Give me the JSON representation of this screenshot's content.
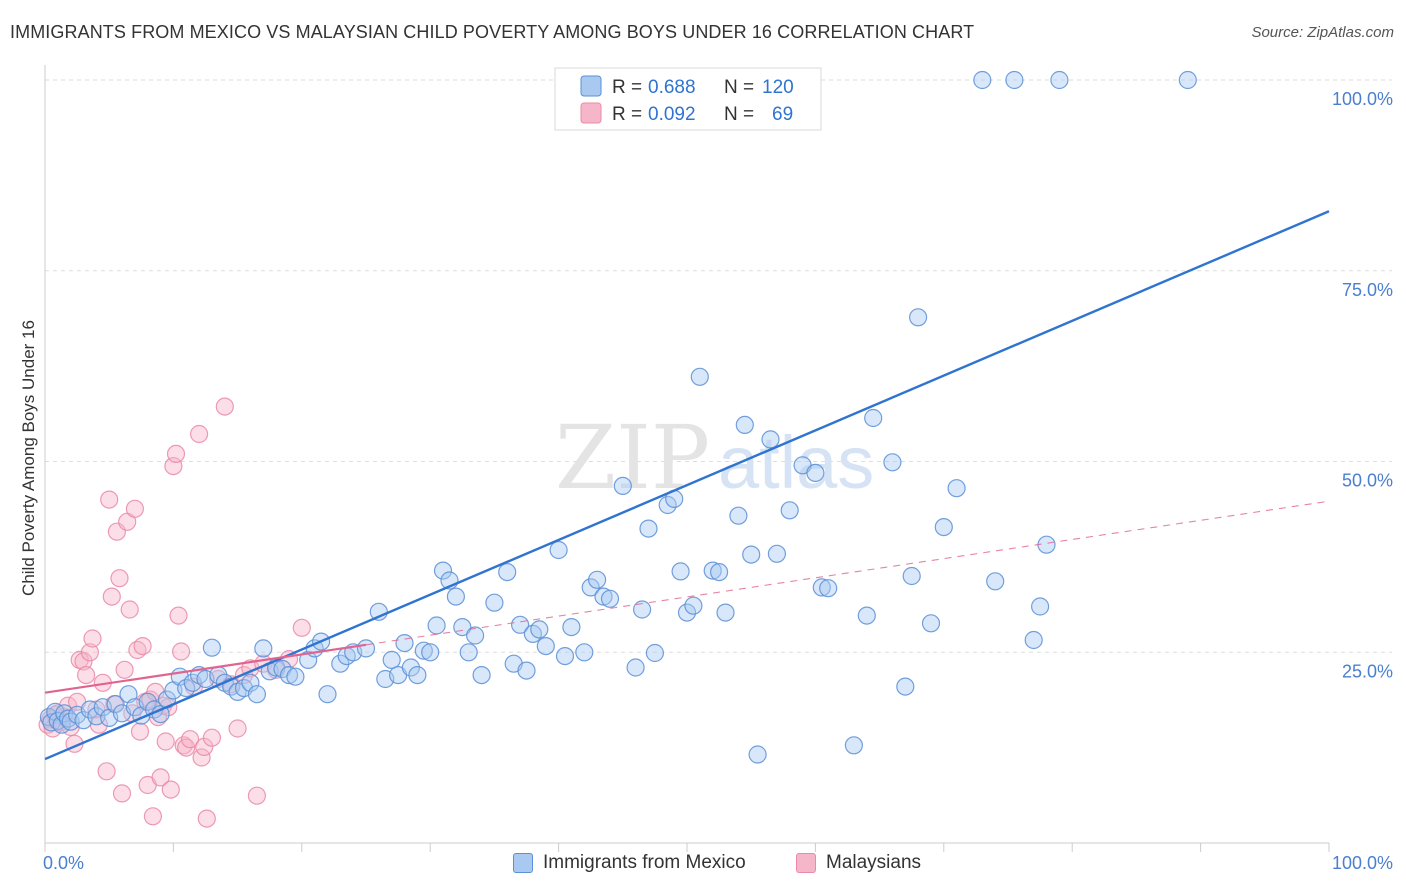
{
  "title": "IMMIGRANTS FROM MEXICO VS MALAYSIAN CHILD POVERTY AMONG BOYS UNDER 16 CORRELATION CHART",
  "source": "Source: ZipAtlas.com",
  "watermark": {
    "zip": "ZIP",
    "atlas": "atlas"
  },
  "colors": {
    "blue_fill": "#a9c9f1",
    "blue_stroke": "#5b8fd6",
    "blue_line": "#2f74d0",
    "pink_fill": "#f6b6c9",
    "pink_stroke": "#ea8aa7",
    "pink_line": "#e0648f",
    "grid": "#dddddd",
    "tick_label": "#4a7fcf"
  },
  "legend_top": [
    {
      "r_label": "R = ",
      "r_value": "0.688",
      "n_label": "N = ",
      "n_value": "120"
    },
    {
      "r_label": "R = ",
      "r_value": "0.092",
      "n_label": "N = ",
      "n_value": "69"
    }
  ],
  "chart_data": {
    "type": "scatter",
    "title": "IMMIGRANTS FROM MEXICO VS MALAYSIAN CHILD POVERTY AMONG BOYS UNDER 16 CORRELATION CHART",
    "xlabel": "",
    "ylabel": "Child Poverty Among Boys Under 16",
    "xlim": [
      0,
      100
    ],
    "ylim": [
      0,
      100
    ],
    "x_tick_labels": [
      "0.0%",
      "100.0%"
    ],
    "y_ticks": [
      25,
      50,
      75,
      100
    ],
    "y_tick_labels": [
      "25.0%",
      "50.0%",
      "75.0%",
      "100.0%"
    ],
    "grid": true,
    "legend_position": "bottom",
    "series": [
      {
        "name": "Immigrants from Mexico",
        "r": 0.688,
        "n": 120,
        "trend": {
          "x": [
            0,
            100
          ],
          "y": [
            11.0,
            82.8
          ]
        },
        "points": [
          [
            0.3,
            16.5
          ],
          [
            0.5,
            15.8
          ],
          [
            0.8,
            17.2
          ],
          [
            1.0,
            16.0
          ],
          [
            1.3,
            15.5
          ],
          [
            1.5,
            17.0
          ],
          [
            1.8,
            16.3
          ],
          [
            2.0,
            15.9
          ],
          [
            2.5,
            16.8
          ],
          [
            3.0,
            16.1
          ],
          [
            3.5,
            17.5
          ],
          [
            4.0,
            16.6
          ],
          [
            4.5,
            17.8
          ],
          [
            5.0,
            16.4
          ],
          [
            5.5,
            18.2
          ],
          [
            6.0,
            17.0
          ],
          [
            6.5,
            19.5
          ],
          [
            7.0,
            17.8
          ],
          [
            7.5,
            16.7
          ],
          [
            8.0,
            18.5
          ],
          [
            8.5,
            17.5
          ],
          [
            9.0,
            16.9
          ],
          [
            9.5,
            18.8
          ],
          [
            10.0,
            20.0
          ],
          [
            10.5,
            21.8
          ],
          [
            11.0,
            20.3
          ],
          [
            11.5,
            21.0
          ],
          [
            12.0,
            22.0
          ],
          [
            12.5,
            21.5
          ],
          [
            13.0,
            25.6
          ],
          [
            13.5,
            22.0
          ],
          [
            14.0,
            21.0
          ],
          [
            14.5,
            20.5
          ],
          [
            15.0,
            19.8
          ],
          [
            15.5,
            20.3
          ],
          [
            16.0,
            21.0
          ],
          [
            16.5,
            19.5
          ],
          [
            17.0,
            25.5
          ],
          [
            17.5,
            22.5
          ],
          [
            18.0,
            23.0
          ],
          [
            18.5,
            22.8
          ],
          [
            19.0,
            22.0
          ],
          [
            19.5,
            21.8
          ],
          [
            20.5,
            24.0
          ],
          [
            21.0,
            25.5
          ],
          [
            21.5,
            26.4
          ],
          [
            22.0,
            19.5
          ],
          [
            23.0,
            23.5
          ],
          [
            23.5,
            24.5
          ],
          [
            24.0,
            25.0
          ],
          [
            25.0,
            25.5
          ],
          [
            26.0,
            30.3
          ],
          [
            26.5,
            21.5
          ],
          [
            27.0,
            24.0
          ],
          [
            27.5,
            22.0
          ],
          [
            28.0,
            26.2
          ],
          [
            28.5,
            23.0
          ],
          [
            29.0,
            22.0
          ],
          [
            29.5,
            25.2
          ],
          [
            30.0,
            25.0
          ],
          [
            30.5,
            28.5
          ],
          [
            31.0,
            35.7
          ],
          [
            31.5,
            34.4
          ],
          [
            32.0,
            32.3
          ],
          [
            32.5,
            28.3
          ],
          [
            33.0,
            25.0
          ],
          [
            33.5,
            27.2
          ],
          [
            34.0,
            22.0
          ],
          [
            35.0,
            31.5
          ],
          [
            36.0,
            35.5
          ],
          [
            36.5,
            23.5
          ],
          [
            37.0,
            28.6
          ],
          [
            37.5,
            22.6
          ],
          [
            38.0,
            27.4
          ],
          [
            38.5,
            28.0
          ],
          [
            39.0,
            25.8
          ],
          [
            40.0,
            38.4
          ],
          [
            40.5,
            24.5
          ],
          [
            41.0,
            28.3
          ],
          [
            42.0,
            25.0
          ],
          [
            42.5,
            33.5
          ],
          [
            43.0,
            34.5
          ],
          [
            43.5,
            32.3
          ],
          [
            44.0,
            32.0
          ],
          [
            45.0,
            46.8
          ],
          [
            46.0,
            23.0
          ],
          [
            46.5,
            30.6
          ],
          [
            47.0,
            41.2
          ],
          [
            47.5,
            24.9
          ],
          [
            48.5,
            44.3
          ],
          [
            49.0,
            45.1
          ],
          [
            49.5,
            35.6
          ],
          [
            50.0,
            30.2
          ],
          [
            50.5,
            31.1
          ],
          [
            51.0,
            61.1
          ],
          [
            52.0,
            35.7
          ],
          [
            52.5,
            35.5
          ],
          [
            53.0,
            30.2
          ],
          [
            54.0,
            42.9
          ],
          [
            54.5,
            54.8
          ],
          [
            55.0,
            37.8
          ],
          [
            55.5,
            11.6
          ],
          [
            56.5,
            52.9
          ],
          [
            57.0,
            37.9
          ],
          [
            58.0,
            43.6
          ],
          [
            59.0,
            49.5
          ],
          [
            60.0,
            48.5
          ],
          [
            60.5,
            33.5
          ],
          [
            61.0,
            33.4
          ],
          [
            63.0,
            12.8
          ],
          [
            64.0,
            29.8
          ],
          [
            64.5,
            55.7
          ],
          [
            66.0,
            49.9
          ],
          [
            67.0,
            20.5
          ],
          [
            67.5,
            35.0
          ],
          [
            68.0,
            68.9
          ],
          [
            69.0,
            28.8
          ],
          [
            70.0,
            41.4
          ],
          [
            71.0,
            46.5
          ],
          [
            73.0,
            100.0
          ],
          [
            74.0,
            34.3
          ],
          [
            75.5,
            100.0
          ],
          [
            77.0,
            26.6
          ],
          [
            77.5,
            31.0
          ],
          [
            78.0,
            39.1
          ],
          [
            79.0,
            100.0
          ],
          [
            89.0,
            100.0
          ]
        ]
      },
      {
        "name": "Malaysians",
        "r": 0.092,
        "n": 69,
        "trend": {
          "x": [
            0,
            100
          ],
          "y": [
            19.7,
            44.8
          ]
        },
        "points": [
          [
            0.2,
            15.5
          ],
          [
            0.4,
            16.2
          ],
          [
            0.6,
            15.0
          ],
          [
            0.8,
            16.8
          ],
          [
            1.0,
            17.0
          ],
          [
            1.2,
            15.8
          ],
          [
            1.5,
            16.5
          ],
          [
            1.8,
            18.0
          ],
          [
            2.0,
            15.2
          ],
          [
            2.3,
            13.0
          ],
          [
            2.5,
            18.5
          ],
          [
            2.7,
            24.0
          ],
          [
            3.0,
            23.8
          ],
          [
            3.2,
            22.0
          ],
          [
            3.5,
            25.0
          ],
          [
            3.7,
            26.8
          ],
          [
            4.0,
            17.5
          ],
          [
            4.2,
            15.5
          ],
          [
            4.5,
            21.0
          ],
          [
            4.8,
            9.4
          ],
          [
            5.0,
            45.0
          ],
          [
            5.2,
            32.3
          ],
          [
            5.4,
            18.2
          ],
          [
            5.6,
            40.8
          ],
          [
            5.8,
            34.7
          ],
          [
            6.0,
            6.5
          ],
          [
            6.2,
            22.7
          ],
          [
            6.4,
            42.1
          ],
          [
            6.6,
            30.6
          ],
          [
            6.8,
            17.0
          ],
          [
            7.0,
            43.8
          ],
          [
            7.2,
            25.3
          ],
          [
            7.4,
            14.6
          ],
          [
            7.6,
            25.8
          ],
          [
            7.8,
            18.5
          ],
          [
            8.0,
            7.6
          ],
          [
            8.2,
            18.8
          ],
          [
            8.4,
            3.5
          ],
          [
            8.6,
            19.8
          ],
          [
            8.8,
            16.5
          ],
          [
            9.0,
            8.6
          ],
          [
            9.2,
            18.0
          ],
          [
            9.4,
            13.3
          ],
          [
            9.6,
            17.8
          ],
          [
            9.8,
            7.0
          ],
          [
            10.0,
            49.4
          ],
          [
            10.2,
            51.0
          ],
          [
            10.4,
            29.8
          ],
          [
            10.6,
            25.1
          ],
          [
            10.8,
            12.8
          ],
          [
            11.0,
            12.5
          ],
          [
            11.3,
            13.6
          ],
          [
            11.6,
            20.5
          ],
          [
            12.0,
            53.6
          ],
          [
            12.2,
            11.2
          ],
          [
            12.4,
            12.6
          ],
          [
            12.6,
            3.2
          ],
          [
            13.0,
            13.8
          ],
          [
            13.5,
            21.5
          ],
          [
            14.0,
            57.2
          ],
          [
            14.5,
            20.8
          ],
          [
            15.0,
            15.0
          ],
          [
            15.5,
            22.0
          ],
          [
            16.0,
            22.9
          ],
          [
            16.5,
            6.2
          ],
          [
            17.0,
            23.5
          ],
          [
            18.0,
            22.7
          ],
          [
            19.0,
            24.1
          ],
          [
            20.0,
            28.2
          ]
        ]
      }
    ]
  }
}
